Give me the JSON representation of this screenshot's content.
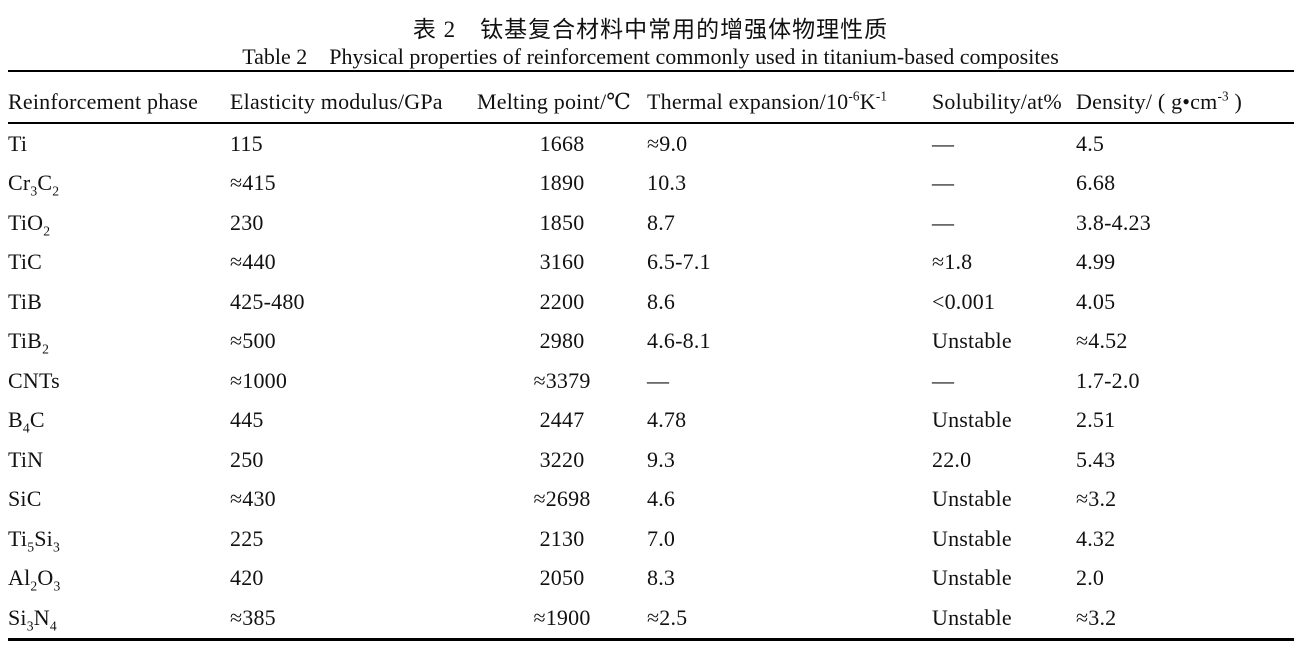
{
  "page": {
    "title_zh": "表 2　钛基复合材料中常用的增强体物理性质",
    "title_en": "Table 2 Physical properties of reinforcement commonly used in titanium-based composites"
  },
  "table": {
    "headers": [
      "Reinforcement phase",
      "Elasticity modulus/GPa",
      "Melting point/℃",
      "Thermal expansion/10^-6^K^-1^",
      "Solubility/at%",
      "Density/ ( g•cm^-3^ )"
    ],
    "rows": [
      [
        "Ti",
        "115",
        "1668",
        "≈9.0",
        "—",
        "4.5"
      ],
      [
        "Cr~3~C~2~",
        "≈415",
        "1890",
        "10.3",
        "—",
        "6.68"
      ],
      [
        "TiO~2~",
        "230",
        "1850",
        "8.7",
        "—",
        "3.8-4.23"
      ],
      [
        "TiC",
        "≈440",
        "3160",
        "6.5-7.1",
        "≈1.8",
        "4.99"
      ],
      [
        "TiB",
        "425-480",
        "2200",
        "8.6",
        "<0.001",
        "4.05"
      ],
      [
        "TiB~2~",
        "≈500",
        "2980",
        "4.6-8.1",
        "Unstable",
        "≈4.52"
      ],
      [
        "CNTs",
        "≈1000",
        "≈3379",
        "—",
        "—",
        "1.7-2.0"
      ],
      [
        "B~4~C",
        "445",
        "2447",
        "4.78",
        "Unstable",
        "2.51"
      ],
      [
        "TiN",
        "250",
        "3220",
        "9.3",
        "22.0",
        "5.43"
      ],
      [
        "SiC",
        "≈430",
        "≈2698",
        "4.6",
        "Unstable",
        "≈3.2"
      ],
      [
        "Ti~5~Si~3~",
        "225",
        "2130",
        "7.0",
        "Unstable",
        "4.32"
      ],
      [
        "Al~2~O~3~",
        "420",
        "2050",
        "8.3",
        "Unstable",
        "2.0"
      ],
      [
        "Si~3~N~4~",
        "≈385",
        "≈1900",
        "≈2.5",
        "Unstable",
        "≈3.2"
      ]
    ]
  }
}
